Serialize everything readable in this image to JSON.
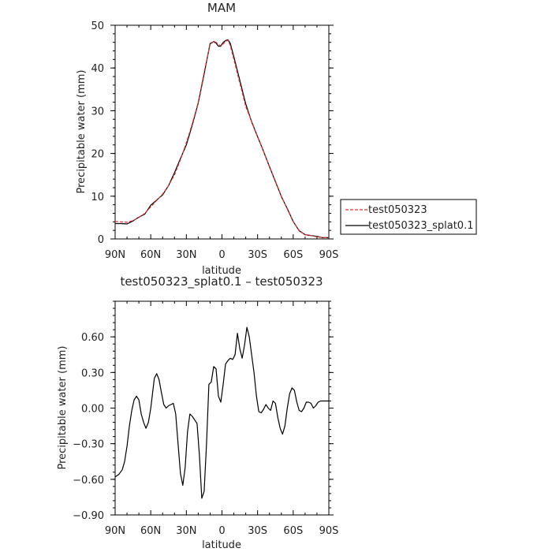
{
  "chart_data": [
    {
      "type": "line",
      "title": "MAM",
      "xlabel": "latitude",
      "ylabel": "Precipitable water (mm)",
      "xlim": [
        -90,
        90
      ],
      "ylim": [
        0,
        50
      ],
      "x_ticks": [
        -90,
        -60,
        -30,
        0,
        30,
        60,
        90
      ],
      "x_tick_labels": [
        "90N",
        "60N",
        "30N",
        "0",
        "30S",
        "60S",
        "90S"
      ],
      "y_ticks": [
        0,
        10,
        20,
        30,
        40,
        50
      ],
      "y_tick_labels": [
        "0",
        "10",
        "20",
        "30",
        "40",
        "50"
      ],
      "legend_position": "right",
      "x": [
        -90,
        -85,
        -80,
        -75,
        -70,
        -65,
        -60,
        -55,
        -50,
        -45,
        -40,
        -35,
        -30,
        -25,
        -20,
        -15,
        -10,
        -7,
        -5,
        -3,
        -1,
        0,
        1,
        3,
        5,
        7,
        10,
        15,
        20,
        25,
        30,
        35,
        40,
        45,
        50,
        55,
        60,
        65,
        70,
        75,
        80,
        85,
        90
      ],
      "series": [
        {
          "name": "test050323",
          "color": "#e03030",
          "dash": "dashed",
          "values": [
            4.1,
            4.0,
            3.9,
            4.3,
            5.0,
            6.0,
            7.5,
            9.0,
            10.5,
            12.5,
            15.0,
            18.5,
            22.5,
            27.0,
            32.0,
            39.0,
            45.5,
            46.2,
            46.0,
            45.5,
            45.2,
            45.3,
            45.6,
            46.2,
            46.5,
            45.3,
            42.0,
            36.5,
            31.0,
            27.5,
            24.0,
            20.5,
            17.0,
            13.5,
            10.0,
            7.0,
            4.0,
            2.0,
            1.0,
            0.8,
            0.5,
            0.3,
            0.3
          ]
        },
        {
          "name": "test050323_splat0.1",
          "color": "#000000",
          "dash": "solid",
          "values": [
            3.6,
            3.6,
            3.5,
            4.2,
            5.1,
            5.8,
            7.9,
            9.1,
            10.3,
            12.5,
            15.5,
            18.8,
            22.0,
            26.7,
            31.8,
            38.6,
            45.7,
            46.2,
            45.8,
            45.1,
            45.1,
            45.6,
            46.0,
            46.4,
            46.6,
            45.8,
            42.6,
            37.1,
            31.6,
            27.4,
            23.9,
            20.5,
            16.9,
            13.4,
            9.9,
            7.1,
            4.1,
            1.9,
            1.0,
            0.8,
            0.6,
            0.3,
            0.3
          ]
        }
      ]
    },
    {
      "type": "line",
      "title": "test050323_splat0.1 – test050323",
      "xlabel": "latitude",
      "ylabel": "Precipitable water (mm)",
      "xlim": [
        -90,
        90
      ],
      "ylim": [
        -0.9,
        0.9
      ],
      "x_ticks": [
        -90,
        -60,
        -30,
        0,
        30,
        60,
        90
      ],
      "x_tick_labels": [
        "90N",
        "60N",
        "30N",
        "0",
        "30S",
        "60S",
        "90S"
      ],
      "y_ticks": [
        -0.9,
        -0.6,
        -0.3,
        0.0,
        0.3,
        0.6
      ],
      "y_tick_labels": [
        "−0.90",
        "−0.60",
        "−0.30",
        "0.00",
        "0.30",
        "0.60"
      ],
      "x": [
        -90,
        -87,
        -84,
        -82,
        -80,
        -78,
        -76,
        -74,
        -72,
        -70,
        -68,
        -66,
        -64,
        -62,
        -60,
        -57,
        -55,
        -53,
        -51,
        -49,
        -47,
        -45,
        -43,
        -41,
        -39,
        -37,
        -35,
        -33,
        -31,
        -29,
        -27,
        -25,
        -23,
        -21,
        -19,
        -17,
        -15,
        -13,
        -11,
        -9,
        -7,
        -5,
        -3,
        -1,
        1,
        3,
        5,
        7,
        9,
        11,
        13,
        15,
        17,
        19,
        21,
        23,
        25,
        27,
        29,
        31,
        33,
        35,
        37,
        39,
        41,
        43,
        45,
        47,
        49,
        51,
        53,
        55,
        57,
        59,
        61,
        63,
        65,
        67,
        69,
        71,
        73,
        75,
        77,
        79,
        81,
        83,
        85,
        87,
        90
      ],
      "series": [
        {
          "name": "",
          "color": "#000000",
          "dash": "solid",
          "values": [
            -0.58,
            -0.56,
            -0.52,
            -0.45,
            -0.32,
            -0.15,
            -0.02,
            0.07,
            0.1,
            0.07,
            -0.05,
            -0.12,
            -0.17,
            -0.12,
            0.0,
            0.25,
            0.29,
            0.24,
            0.13,
            0.03,
            0.0,
            0.02,
            0.03,
            0.04,
            -0.05,
            -0.3,
            -0.55,
            -0.65,
            -0.5,
            -0.2,
            -0.05,
            -0.07,
            -0.1,
            -0.13,
            -0.4,
            -0.76,
            -0.7,
            -0.3,
            0.2,
            0.22,
            0.35,
            0.33,
            0.1,
            0.05,
            0.2,
            0.37,
            0.4,
            0.42,
            0.41,
            0.45,
            0.63,
            0.5,
            0.42,
            0.53,
            0.68,
            0.6,
            0.45,
            0.3,
            0.1,
            -0.03,
            -0.04,
            -0.01,
            0.03,
            0.0,
            -0.02,
            0.06,
            0.04,
            -0.08,
            -0.17,
            -0.22,
            -0.15,
            0.0,
            0.12,
            0.17,
            0.15,
            0.05,
            -0.02,
            -0.03,
            0.0,
            0.05,
            0.05,
            0.04,
            0.0,
            0.02,
            0.05,
            0.06,
            0.06,
            0.06,
            0.06
          ]
        }
      ]
    }
  ]
}
